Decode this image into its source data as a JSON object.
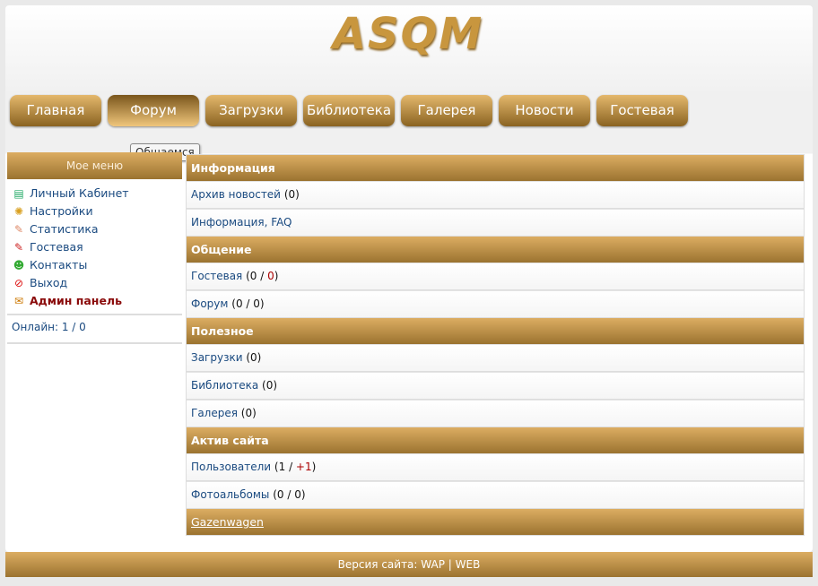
{
  "logo": "ASQM",
  "nav": [
    {
      "label": "Главная"
    },
    {
      "label": "Форум",
      "active": true
    },
    {
      "label": "Загрузки"
    },
    {
      "label": "Библиотека"
    },
    {
      "label": "Галерея"
    },
    {
      "label": "Новости"
    },
    {
      "label": "Гостевая"
    }
  ],
  "tooltip": "Общаемся",
  "sidebar": {
    "title": "Мое меню",
    "items": [
      {
        "label": "Личный Кабинет",
        "icon": "id-card-icon"
      },
      {
        "label": "Настройки",
        "icon": "gear-icon"
      },
      {
        "label": "Статистика",
        "icon": "user-pencil-icon"
      },
      {
        "label": "Гостевая",
        "icon": "document-pencil-icon"
      },
      {
        "label": "Контакты",
        "icon": "contacts-icon"
      },
      {
        "label": "Выход",
        "icon": "no-entry-icon"
      },
      {
        "label": "Админ панель",
        "icon": "pin-note-icon"
      }
    ],
    "online_label": "Онлайн:",
    "online_value": "1 / 0"
  },
  "sections": [
    {
      "title": "Информация",
      "rows": [
        {
          "label": "Архив новостей",
          "count": "(0)"
        },
        {
          "label": "Информация, FAQ",
          "count": ""
        }
      ]
    },
    {
      "title": "Общение",
      "rows": [
        {
          "label": "Гостевая",
          "a": "0",
          "b": "0",
          "b_red": true
        },
        {
          "label": "Форум",
          "a": "0",
          "b": "0"
        }
      ]
    },
    {
      "title": "Полезное",
      "rows": [
        {
          "label": "Загрузки",
          "count": "(0)"
        },
        {
          "label": "Библиотека",
          "count": "(0)"
        },
        {
          "label": "Галерея",
          "count": "(0)"
        }
      ]
    },
    {
      "title": "Актив сайта",
      "rows": [
        {
          "label": "Пользователи",
          "a": "1",
          "b": "+1",
          "b_red": true
        },
        {
          "label": "Фотоальбомы",
          "a": "0",
          "b": "0"
        }
      ]
    }
  ],
  "bottom_link": "Gazenwagen",
  "footer": {
    "label": "Версия сайта:",
    "wap": "WAP",
    "sep": "|",
    "web": "WEB"
  }
}
